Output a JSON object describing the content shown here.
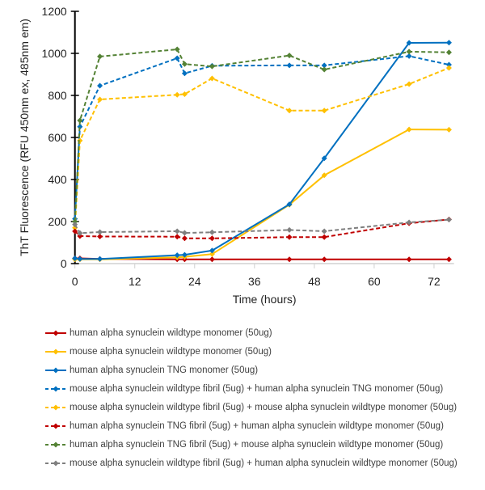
{
  "chart_data": {
    "type": "line",
    "title": "",
    "xlabel": "Time (hours)",
    "ylabel": "ThT Fluorescence (RFU 450nm ex, 485nm em)",
    "xlim": [
      0,
      76
    ],
    "ylim": [
      0,
      1200
    ],
    "xticks": [
      0,
      12,
      24,
      36,
      48,
      60,
      72
    ],
    "yticks": [
      0,
      200,
      400,
      600,
      800,
      1000,
      1200
    ],
    "grid": false,
    "legend": "bottom",
    "x": [
      0,
      1,
      5,
      20.5,
      22,
      27.5,
      43,
      50,
      67,
      75
    ],
    "series": [
      {
        "name": "human alpha synuclein wildtype monomer (50ug)",
        "color": "#C00000",
        "dashed": false,
        "values": [
          25,
          25,
          22,
          20,
          20,
          20,
          20,
          20,
          20,
          20
        ]
      },
      {
        "name": "mouse alpha synuclein wildtype monomer (50ug)",
        "color": "#FFC000",
        "dashed": false,
        "values": [
          20,
          20,
          20,
          30,
          32,
          45,
          280,
          420,
          638,
          637
        ]
      },
      {
        "name": "human alpha synuclein TNG monomer (50ug)",
        "color": "#0070C0",
        "dashed": false,
        "values": [
          25,
          22,
          22,
          40,
          42,
          62,
          282,
          501,
          1050,
          1051
        ]
      },
      {
        "name": "mouse alpha synuclein wildtype fibril (5ug) + human alpha synuclein TNG monomer (50ug)",
        "color": "#0070C0",
        "dashed": true,
        "values": [
          213,
          651,
          846,
          977,
          905,
          941,
          943,
          943,
          987,
          946
        ]
      },
      {
        "name": "mouse alpha synuclein wildtype fibril (5ug) + mouse alpha synuclein wildtype monomer (50ug)",
        "color": "#FFC000",
        "dashed": true,
        "values": [
          170,
          585,
          781,
          803,
          806,
          881,
          728,
          728,
          854,
          931
        ]
      },
      {
        "name": "human alpha synuclein TNG fibril (5ug) + human alpha synuclein wildtype monomer (50ug)",
        "color": "#C00000",
        "dashed": true,
        "values": [
          154,
          131,
          129,
          128,
          120,
          120,
          126,
          126,
          192,
          210
        ]
      },
      {
        "name": "human alpha synuclein TNG fibril (5ug) + mouse alpha synuclein wildtype monomer (50ug)",
        "color": "#548235",
        "dashed": true,
        "values": [
          200,
          681,
          985,
          1019,
          949,
          938,
          990,
          923,
          1008,
          1005
        ]
      },
      {
        "name": "mouse alpha synuclein wildtype fibril (5ug) + human alpha synuclein wildtype monomer (50ug)",
        "color": "#7F7F7F",
        "dashed": true,
        "values": [
          186,
          145,
          150,
          154,
          146,
          149,
          160,
          154,
          196,
          209
        ]
      }
    ]
  }
}
